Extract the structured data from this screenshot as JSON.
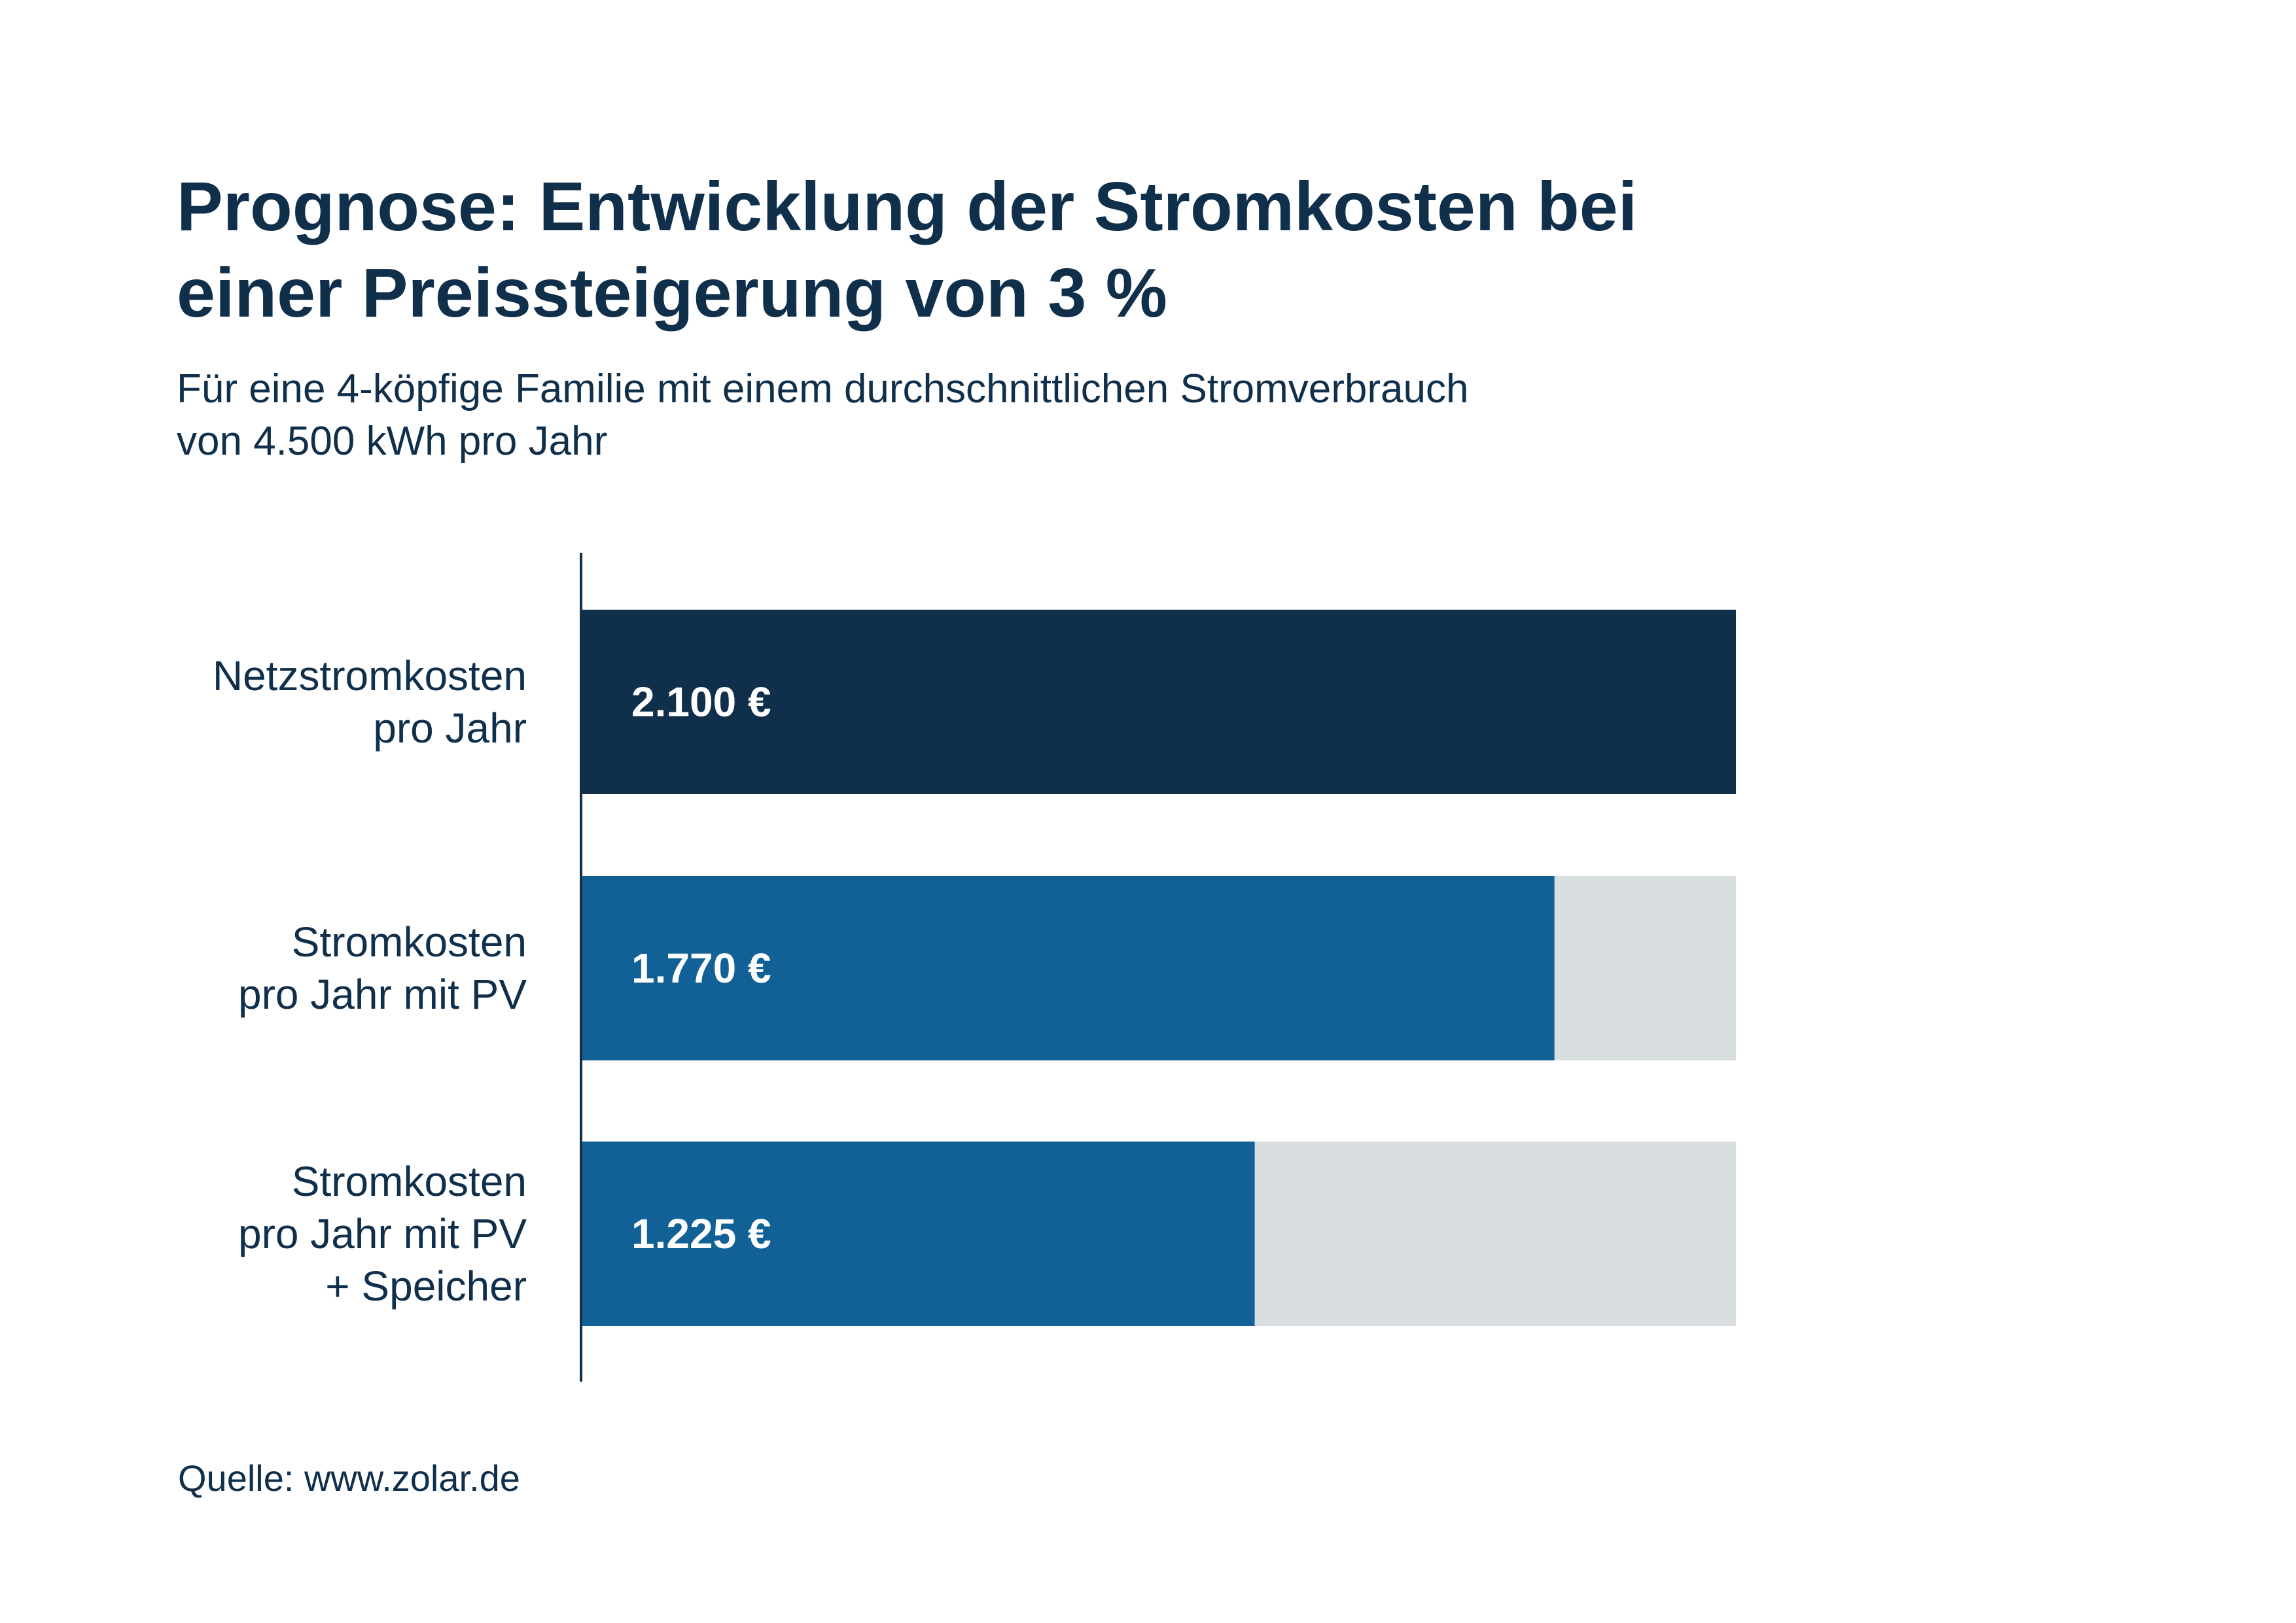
{
  "header": {
    "title_line1": "Prognose: Entwicklung der Stromkosten bei",
    "title_line2": "einer Preissteigerung von 3 %",
    "subtitle_line1": "Für eine 4-köpfige Familie mit einem durchschnittlichen Stromverbrauch",
    "subtitle_line2": "von 4.500 kWh pro Jahr"
  },
  "footer": {
    "source": "Quelle: www.zolar.de"
  },
  "chart_data": {
    "type": "bar",
    "orientation": "horizontal",
    "categories": [
      [
        "Netzstromkosten",
        "pro Jahr"
      ],
      [
        "Stromkosten",
        "pro Jahr mit PV"
      ],
      [
        "Stromkosten",
        "pro Jahr mit PV",
        "+ Speicher"
      ]
    ],
    "values": [
      2100,
      1770,
      1225
    ],
    "value_labels": [
      "2.100 €",
      "1.770 €",
      "1.225 €"
    ],
    "xlim": [
      0,
      2100
    ],
    "grid": false,
    "colors": {
      "bars": [
        "#0f2f4a",
        "#116196",
        "#116196"
      ],
      "track": "#d9dee1",
      "axis": "#0f2f4a"
    }
  }
}
